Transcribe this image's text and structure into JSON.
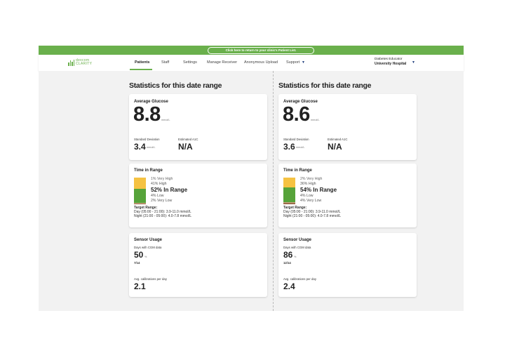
{
  "banner": {
    "label": "Click here to return to your clinic's Patient List."
  },
  "logo": {
    "line1": "dexcom",
    "line2": "CLARITY"
  },
  "nav": {
    "tabs": [
      "Patients",
      "Staff",
      "Settings",
      "Manage Receiver",
      "Anonymous Upload",
      "Support"
    ]
  },
  "user": {
    "role": "Diabetes Educator",
    "org": "University Hospital"
  },
  "colors": {
    "green": "#6ab04c",
    "yellow": "#f5c242",
    "inrange": "#56a33a",
    "low": "#c8a882",
    "verylow": "#9c6b4a"
  },
  "columns": [
    {
      "title": "Statistics for this date range",
      "avg": {
        "label": "Average Glucose",
        "value": "8.8",
        "unit": "mmol/L"
      },
      "sd": {
        "label": "Standard Deviation",
        "value": "3.4",
        "unit": "mmol/L"
      },
      "a1c": {
        "label": "Estimated A1C",
        "value": "N/A"
      },
      "tir": {
        "title": "Time in Range",
        "very_high": "1% Very High",
        "high": "41% High",
        "in_range": "52% In Range",
        "low": "4% Low",
        "very_low": "2% Very Low",
        "pct": [
          1,
          41,
          52,
          4,
          2
        ]
      },
      "target": {
        "title": "Target Range:",
        "day": "Day (05:00 - 21:00): 3.9-11.0 mmol/L",
        "night": "Night (21:00 - 05:00): 4.0-7.8 mmol/L"
      },
      "sensor": {
        "title": "Sensor Usage",
        "days_label": "Days with CGM data",
        "days": "50",
        "pct": "%",
        "frac": "7/14",
        "cal_label": "Avg. calibrations per day",
        "cal": "2.1"
      }
    },
    {
      "title": "Statistics for this date range",
      "avg": {
        "label": "Average Glucose",
        "value": "8.6",
        "unit": "mmol/L"
      },
      "sd": {
        "label": "Standard Deviation",
        "value": "3.6",
        "unit": "mmol/L"
      },
      "a1c": {
        "label": "Estimated A1C",
        "value": "N/A"
      },
      "tir": {
        "title": "Time in Range",
        "very_high": "2% Very High",
        "high": "36% High",
        "in_range": "54% In Range",
        "low": "4% Low",
        "very_low": "4% Very Low",
        "pct": [
          2,
          36,
          54,
          4,
          4
        ]
      },
      "target": {
        "title": "Target Range:",
        "day": "Day (05:00 - 21:00): 3.9-11.0 mmol/L",
        "night": "Night (21:00 - 05:00): 4.0-7.8 mmol/L"
      },
      "sensor": {
        "title": "Sensor Usage",
        "days_label": "Days with CGM data",
        "days": "86",
        "pct": "%",
        "frac": "12/14",
        "cal_label": "Avg. calibrations per day",
        "cal": "2.4"
      }
    }
  ]
}
